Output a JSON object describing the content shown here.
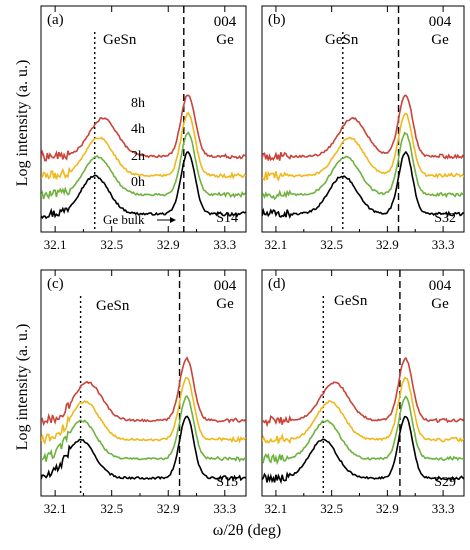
{
  "figure": {
    "ylabel": "Log intensity (a. u.)",
    "xlabel": "ω/2θ (deg)",
    "xlim": [
      32.0,
      33.45
    ],
    "xticks": [
      32.1,
      32.5,
      32.9,
      33.3
    ],
    "xtick_labels": [
      "32.1",
      "32.5",
      "32.9",
      "33.3"
    ]
  },
  "colors": {
    "0h": "#000000",
    "2h": "#6fb23f",
    "4h": "#f0b81c",
    "8h": "#c8443a"
  },
  "chart_data": [
    {
      "type": "line",
      "panel": "(a)",
      "sample": "S14",
      "peak_labels": {
        "gesn": "GeSn",
        "ge_order": "004",
        "ge": "Ge"
      },
      "ge_bulk_label": "Ge bulk",
      "gesn_marker_x": 32.38,
      "ge_marker_x": 33.01,
      "series": [
        {
          "name": "0h",
          "gesn_peak": 32.38,
          "ge_peak": 33.04,
          "offset": 0.0
        },
        {
          "name": "2h",
          "gesn_peak": 32.4,
          "ge_peak": 33.04,
          "offset": 0.6
        },
        {
          "name": "4h",
          "gesn_peak": 32.41,
          "ge_peak": 33.04,
          "offset": 1.2
        },
        {
          "name": "8h",
          "gesn_peak": 32.44,
          "ge_peak": 33.04,
          "offset": 1.8
        }
      ]
    },
    {
      "type": "line",
      "panel": "(b)",
      "sample": "S32",
      "peak_labels": {
        "gesn": "GeSn",
        "ge_order": "004",
        "ge": "Ge"
      },
      "gesn_marker_x": 32.58,
      "ge_marker_x": 32.98,
      "series": [
        {
          "name": "0h",
          "gesn_peak": 32.58,
          "ge_peak": 33.03,
          "offset": 0.0
        },
        {
          "name": "2h",
          "gesn_peak": 32.6,
          "ge_peak": 33.03,
          "offset": 0.6
        },
        {
          "name": "4h",
          "gesn_peak": 32.63,
          "ge_peak": 33.03,
          "offset": 1.2
        },
        {
          "name": "8h",
          "gesn_peak": 32.65,
          "ge_peak": 33.03,
          "offset": 1.8
        }
      ]
    },
    {
      "type": "line",
      "panel": "(c)",
      "sample": "S15",
      "peak_labels": {
        "gesn": "GeSn",
        "ge_order": "004",
        "ge": "Ge"
      },
      "gesn_marker_x": 32.28,
      "ge_marker_x": 32.98,
      "series": [
        {
          "name": "0h",
          "gesn_peak": 32.28,
          "ge_peak": 33.03,
          "offset": 0.0
        },
        {
          "name": "2h",
          "gesn_peak": 32.29,
          "ge_peak": 33.03,
          "offset": 0.6
        },
        {
          "name": "4h",
          "gesn_peak": 32.31,
          "ge_peak": 33.03,
          "offset": 1.2
        },
        {
          "name": "8h",
          "gesn_peak": 32.33,
          "ge_peak": 33.03,
          "offset": 1.8
        }
      ]
    },
    {
      "type": "line",
      "panel": "(d)",
      "sample": "S29",
      "peak_labels": {
        "gesn": "GeSn",
        "ge_order": "004",
        "ge": "Ge"
      },
      "gesn_marker_x": 32.44,
      "ge_marker_x": 32.99,
      "series": [
        {
          "name": "0h",
          "gesn_peak": 32.44,
          "ge_peak": 33.03,
          "offset": 0.0
        },
        {
          "name": "2h",
          "gesn_peak": 32.46,
          "ge_peak": 33.03,
          "offset": 0.6
        },
        {
          "name": "4h",
          "gesn_peak": 32.49,
          "ge_peak": 33.03,
          "offset": 1.2
        },
        {
          "name": "8h",
          "gesn_peak": 32.52,
          "ge_peak": 33.03,
          "offset": 1.8
        }
      ]
    }
  ]
}
